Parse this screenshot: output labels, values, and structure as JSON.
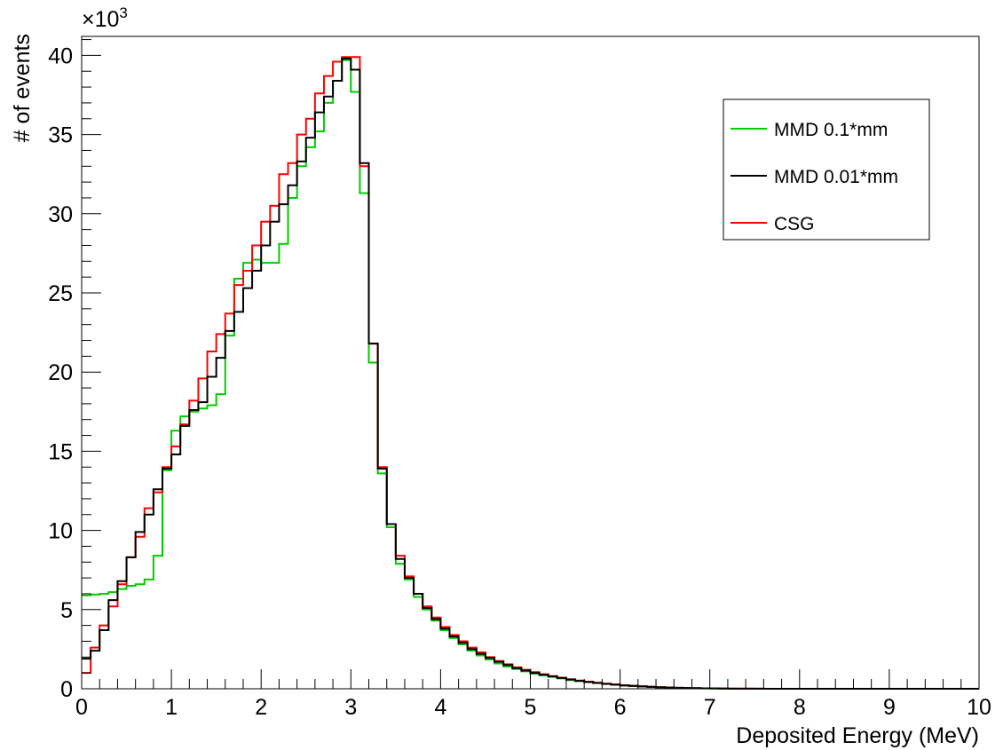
{
  "chart_data": {
    "type": "histogram",
    "xlabel": "Deposited Energy (MeV)",
    "ylabel": "# of events",
    "y_multiplier": {
      "base": "×10",
      "exp": "3"
    },
    "xlim": [
      0,
      10
    ],
    "ylim": [
      0,
      41.2
    ],
    "x_ticks": [
      0,
      1,
      2,
      3,
      4,
      5,
      6,
      7,
      8,
      9,
      10
    ],
    "x_tick_labels": [
      "0",
      "1",
      "2",
      "3",
      "4",
      "5",
      "6",
      "7",
      "8",
      "9",
      "10"
    ],
    "y_ticks": [
      0,
      5,
      10,
      15,
      20,
      25,
      30,
      35,
      40
    ],
    "y_tick_labels": [
      "0",
      "5",
      "10",
      "15",
      "20",
      "25",
      "30",
      "35",
      "40"
    ],
    "bin_width": 0.1,
    "legend_position": "top-right",
    "series": [
      {
        "name": "MMD 0.1*mm",
        "color": "#00cc00",
        "values": [
          5.9,
          5.95,
          6.0,
          6.1,
          6.3,
          6.5,
          6.6,
          6.9,
          8.4,
          13.8,
          16.3,
          17.2,
          17.5,
          17.7,
          17.9,
          18.6,
          22.3,
          25.9,
          26.9,
          27.1,
          26.9,
          26.9,
          28.1,
          31.0,
          33.0,
          34.2,
          35.2,
          37.0,
          38.4,
          39.7,
          37.7,
          31.3,
          20.6,
          13.6,
          10.2,
          7.9,
          6.9,
          5.8,
          5.0,
          4.3,
          3.7,
          3.2,
          2.8,
          2.4,
          2.1,
          1.85,
          1.6,
          1.4,
          1.25,
          1.1,
          0.95,
          0.85,
          0.75,
          0.65,
          0.55,
          0.48,
          0.42,
          0.36,
          0.3,
          0.25,
          0.2,
          0.17,
          0.14,
          0.11,
          0.09,
          0.07,
          0.05,
          0.04,
          0.03,
          0.02,
          0.015,
          0.01,
          0.008,
          0.006,
          0.004,
          0.003,
          0,
          0,
          0,
          0,
          0,
          0,
          0,
          0,
          0,
          0,
          0,
          0,
          0,
          0,
          0,
          0,
          0,
          0,
          0,
          0,
          0,
          0,
          0,
          0
        ]
      },
      {
        "name": "MMD 0.01*mm",
        "color": "#000000",
        "values": [
          1.9,
          2.4,
          3.7,
          5.6,
          6.8,
          8.3,
          9.9,
          11.0,
          12.6,
          13.9,
          14.8,
          16.6,
          17.6,
          18.1,
          19.7,
          20.9,
          22.6,
          23.8,
          25.3,
          26.4,
          28.0,
          29.5,
          30.6,
          31.8,
          33.3,
          34.8,
          36.4,
          37.4,
          38.4,
          39.8,
          39.1,
          33.2,
          21.8,
          13.9,
          10.4,
          8.2,
          7.0,
          6.0,
          5.1,
          4.4,
          3.8,
          3.3,
          2.9,
          2.5,
          2.2,
          1.95,
          1.7,
          1.5,
          1.3,
          1.15,
          1.0,
          0.88,
          0.78,
          0.68,
          0.58,
          0.5,
          0.43,
          0.37,
          0.31,
          0.26,
          0.21,
          0.18,
          0.15,
          0.12,
          0.1,
          0.08,
          0.06,
          0.05,
          0.04,
          0.03,
          0.02,
          0.015,
          0.01,
          0.008,
          0.006,
          0.004,
          0,
          0,
          0,
          0,
          0,
          0,
          0,
          0,
          0,
          0,
          0,
          0,
          0,
          0,
          0,
          0,
          0,
          0,
          0,
          0,
          0,
          0,
          0,
          0
        ]
      },
      {
        "name": "CSG",
        "color": "#ff0000",
        "values": [
          1.0,
          2.6,
          4.0,
          5.2,
          6.6,
          8.3,
          9.6,
          11.4,
          12.4,
          14.0,
          15.3,
          16.7,
          18.2,
          19.6,
          21.3,
          22.4,
          23.7,
          25.5,
          26.4,
          28.0,
          29.5,
          30.5,
          32.5,
          33.2,
          35.0,
          36.0,
          37.6,
          38.7,
          39.6,
          39.9,
          39.9,
          33.0,
          21.8,
          14.0,
          10.4,
          8.4,
          7.1,
          6.0,
          5.2,
          4.5,
          3.9,
          3.4,
          3.0,
          2.6,
          2.3,
          2.0,
          1.75,
          1.55,
          1.35,
          1.2,
          1.05,
          0.92,
          0.8,
          0.7,
          0.6,
          0.52,
          0.45,
          0.38,
          0.32,
          0.27,
          0.22,
          0.19,
          0.16,
          0.13,
          0.1,
          0.08,
          0.065,
          0.05,
          0.04,
          0.03,
          0.025,
          0.02,
          0.015,
          0.01,
          0.008,
          0.005,
          0,
          0,
          0,
          0,
          0,
          0,
          0,
          0,
          0,
          0,
          0,
          0,
          0,
          0,
          0,
          0,
          0,
          0,
          0,
          0,
          0,
          0,
          0,
          0
        ]
      }
    ]
  }
}
